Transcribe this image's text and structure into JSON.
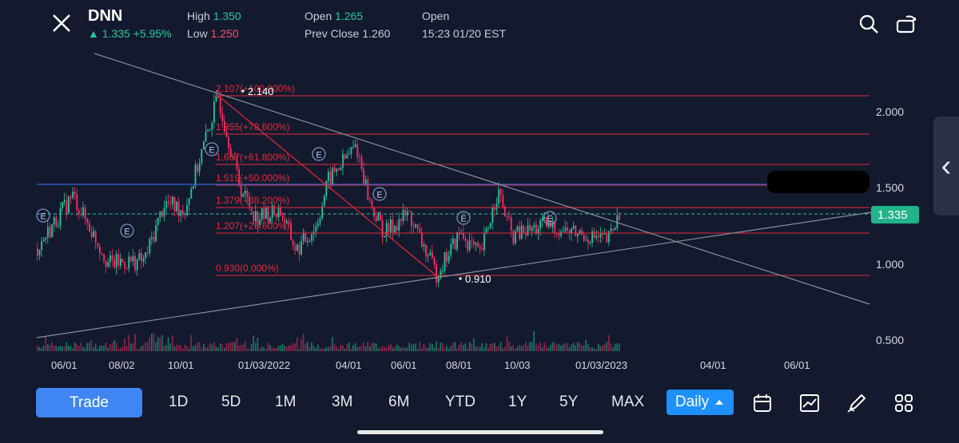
{
  "header": {
    "symbol": "DNN",
    "change": "▲ 1.335 +5.95%",
    "high_label": "High",
    "high_value": "1.350",
    "low_label": "Low",
    "low_value": "1.250",
    "open_label": "Open",
    "open_value": "1.265",
    "prev_close": "Prev Close 1.260",
    "market_status": "Open",
    "timestamp": "15:23 01/20 EST"
  },
  "chart_data": {
    "type": "candlestick",
    "last_price": "1.335",
    "y_ticks": [
      "2.000",
      "1.500",
      "1.000",
      "0.500"
    ],
    "x_ticks": [
      "06/01",
      "08/02",
      "10/01",
      "01/03/2022",
      "04/01",
      "06/01",
      "08/01",
      "10/03",
      "01/03/2023",
      "04/01",
      "06/01"
    ],
    "fib_levels": [
      "2.107(+100.000%)",
      "1.855(+78.600%)",
      "1.657(+61.800%)",
      "1.519(+50.000%)",
      "1.379(+38.200%)",
      "1.207(+23.600%)",
      "0.930(0.000%)"
    ],
    "high_marker": "2.140",
    "low_marker": "0.910",
    "earnings_label": "E",
    "colors": {
      "up": "#27c69d",
      "down": "#ff2d64",
      "fib": "#e8283a",
      "trend": "#8a8f9c",
      "price_line": "#27c69d",
      "h_line": "#2f66d0"
    }
  },
  "toolbar": {
    "trade_label": "Trade",
    "periods": [
      "1D",
      "5D",
      "1M",
      "3M",
      "6M",
      "YTD",
      "1Y",
      "5Y",
      "MAX"
    ],
    "interval_label": "Daily",
    "tools": [
      "calendar-icon",
      "indicator-icon",
      "draw-icon",
      "layout-icon"
    ]
  },
  "side_tab_icon": "‹"
}
